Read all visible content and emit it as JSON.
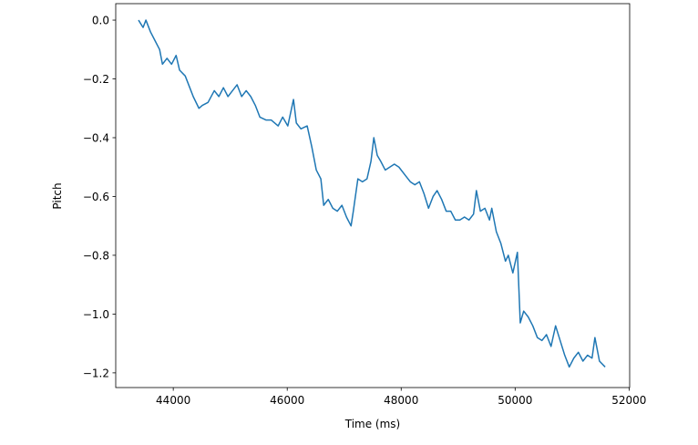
{
  "chart_data": {
    "type": "line",
    "x_label": "Time (ms)",
    "y_label": "Pitch",
    "color": "#1f77b4",
    "x": [
      43390,
      43470,
      43520,
      43600,
      43680,
      43760,
      43810,
      43890,
      43970,
      44050,
      44110,
      44210,
      44290,
      44350,
      44450,
      44510,
      44610,
      44720,
      44800,
      44880,
      44960,
      45040,
      45120,
      45200,
      45280,
      45360,
      45440,
      45520,
      45630,
      45720,
      45840,
      45920,
      46010,
      46110,
      46160,
      46240,
      46350,
      46430,
      46510,
      46590,
      46640,
      46720,
      46800,
      46880,
      46960,
      47040,
      47120,
      47160,
      47240,
      47320,
      47400,
      47470,
      47520,
      47580,
      47640,
      47720,
      47800,
      47880,
      47960,
      48080,
      48160,
      48240,
      48320,
      48400,
      48480,
      48560,
      48630,
      48710,
      48790,
      48870,
      48950,
      49030,
      49110,
      49190,
      49270,
      49320,
      49390,
      49470,
      49550,
      49590,
      49670,
      49750,
      49830,
      49880,
      49960,
      50040,
      50090,
      50150,
      50230,
      50310,
      50390,
      50470,
      50550,
      50630,
      50710,
      50790,
      50870,
      50950,
      51030,
      51110,
      51190,
      51270,
      51350,
      51400,
      51480,
      51580
    ],
    "values": [
      0.0,
      -0.025,
      0.0,
      -0.04,
      -0.07,
      -0.1,
      -0.15,
      -0.13,
      -0.15,
      -0.12,
      -0.17,
      -0.19,
      -0.23,
      -0.26,
      -0.3,
      -0.29,
      -0.28,
      -0.24,
      -0.26,
      -0.23,
      -0.26,
      -0.24,
      -0.22,
      -0.26,
      -0.24,
      -0.26,
      -0.29,
      -0.33,
      -0.34,
      -0.34,
      -0.36,
      -0.33,
      -0.36,
      -0.27,
      -0.35,
      -0.37,
      -0.36,
      -0.43,
      -0.51,
      -0.54,
      -0.63,
      -0.61,
      -0.64,
      -0.65,
      -0.63,
      -0.67,
      -0.7,
      -0.65,
      -0.54,
      -0.55,
      -0.54,
      -0.48,
      -0.4,
      -0.46,
      -0.48,
      -0.51,
      -0.5,
      -0.49,
      -0.5,
      -0.53,
      -0.55,
      -0.56,
      -0.55,
      -0.59,
      -0.64,
      -0.6,
      -0.58,
      -0.61,
      -0.65,
      -0.65,
      -0.68,
      -0.68,
      -0.67,
      -0.68,
      -0.66,
      -0.58,
      -0.65,
      -0.64,
      -0.68,
      -0.64,
      -0.72,
      -0.76,
      -0.82,
      -0.8,
      -0.86,
      -0.79,
      -1.03,
      -0.99,
      -1.01,
      -1.04,
      -1.08,
      -1.09,
      -1.07,
      -1.11,
      -1.04,
      -1.09,
      -1.14,
      -1.18,
      -1.15,
      -1.13,
      -1.16,
      -1.14,
      -1.15,
      -1.08,
      -1.16,
      -1.18
    ],
    "xlim": [
      42990,
      52010
    ],
    "xticks": [
      44000,
      46000,
      48000,
      50000,
      52000
    ],
    "ylim": [
      -1.25,
      0.056
    ],
    "yticks": [
      {
        "value": 0,
        "label": "0.0"
      },
      {
        "value": -0.2,
        "label": "−0.2"
      },
      {
        "value": -0.4,
        "label": "−0.4"
      },
      {
        "value": -0.6,
        "label": "−0.6"
      },
      {
        "value": -0.8,
        "label": "−0.8"
      },
      {
        "value": -1.0,
        "label": "−1.0"
      },
      {
        "value": -1.2,
        "label": "−1.2"
      }
    ]
  }
}
